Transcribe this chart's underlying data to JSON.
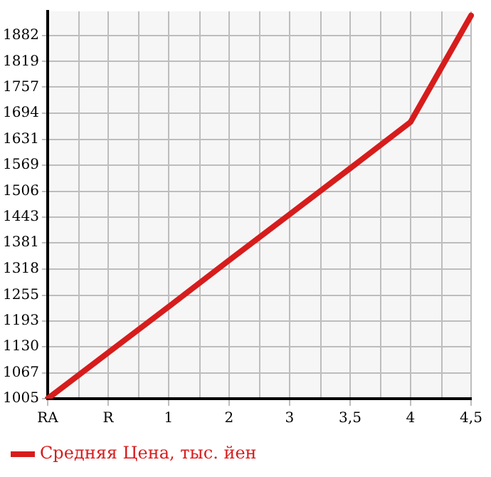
{
  "chart_data": {
    "type": "line",
    "categories": [
      "RA",
      "R",
      "1",
      "2",
      "3",
      "3,5",
      "4",
      "4,5"
    ],
    "series": [
      {
        "name": "Средняя Цена, тыс. йен",
        "color": "#d71c1c",
        "values": [
          1005,
          1116,
          1227,
          1339,
          1450,
          1561,
          1673,
          1930
        ]
      }
    ],
    "ylim": [
      1005,
      1940
    ],
    "yticks": [
      1005,
      1067,
      1130,
      1193,
      1255,
      1318,
      1381,
      1443,
      1506,
      1569,
      1631,
      1694,
      1757,
      1819,
      1882
    ],
    "grid": true,
    "legend": "bottom",
    "marker": "none",
    "line_style": "solid"
  }
}
